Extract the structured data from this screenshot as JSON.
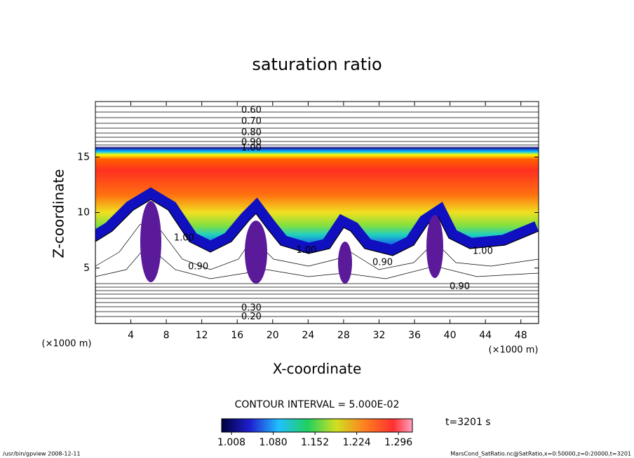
{
  "chart_data": {
    "type": "contour",
    "title": "saturation ratio",
    "xlabel": "X-coordinate",
    "ylabel": "Z-coordinate",
    "x_unit_left": "(×1000 m)",
    "x_unit_right": "(×1000 m)",
    "xlim": [
      0,
      50
    ],
    "ylim": [
      0,
      20
    ],
    "xticks": [
      4,
      8,
      12,
      16,
      20,
      24,
      28,
      32,
      36,
      40,
      44,
      48
    ],
    "yticks": [
      5,
      10,
      15
    ],
    "contour_labels": [
      {
        "label": "0.60",
        "x": 17.6,
        "z": 19.2
      },
      {
        "label": "0.70",
        "x": 17.6,
        "z": 18.2
      },
      {
        "label": "0.80",
        "x": 17.6,
        "z": 17.2
      },
      {
        "label": "0.90",
        "x": 17.6,
        "z": 16.3
      },
      {
        "label": "1.00",
        "x": 17.6,
        "z": 15.8
      },
      {
        "label": "1.00",
        "x": 10.0,
        "z": 7.7
      },
      {
        "label": "1.00",
        "x": 23.8,
        "z": 6.6
      },
      {
        "label": "1.00",
        "x": 43.7,
        "z": 6.5
      },
      {
        "label": "0.90",
        "x": 11.6,
        "z": 5.1
      },
      {
        "label": "0.90",
        "x": 32.4,
        "z": 5.5
      },
      {
        "label": "0.90",
        "x": 41.1,
        "z": 3.3
      },
      {
        "label": "0.30",
        "x": 17.6,
        "z": 1.4
      },
      {
        "label": "0.20",
        "x": 17.6,
        "z": 0.6
      }
    ],
    "contour_interval": "CONTOUR INTERVAL = 5.000E-02",
    "colorbar": {
      "clim": [
        0.991,
        1.32
      ],
      "ticks": [
        1.008,
        {
          "value": 1.08,
          "label": "1.080"
        },
        1.152,
        1.224,
        1.296
      ]
    },
    "time_label": "t=3201 s",
    "footer_left": "/usr/bin/gpview  2008-12-11",
    "footer_right": "MarsCond_SatRatio.nc@SatRatio,x=0:50000,z=0:20000,t=3201"
  }
}
